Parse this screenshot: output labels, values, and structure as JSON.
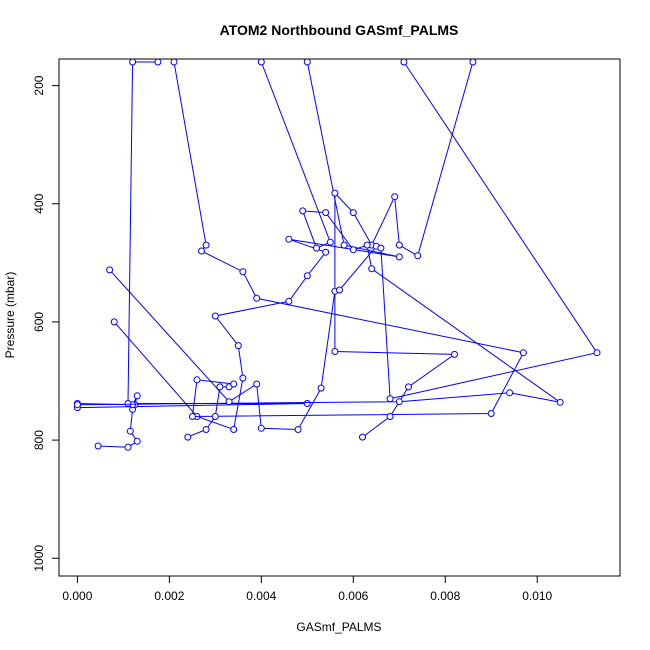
{
  "chart_data": {
    "type": "line",
    "title": "ATOM2 Northbound GASmf_PALMS",
    "xlabel": "GASmf_PALMS",
    "ylabel": "Pressure (mbar)",
    "xlim": [
      -0.0004,
      0.0118
    ],
    "ylim": [
      1030,
      155
    ],
    "y_reversed": true,
    "grid": false,
    "legend": "none",
    "x_ticks": [
      0.0,
      0.002,
      0.004,
      0.006,
      0.008,
      0.01
    ],
    "x_tick_labels": [
      "0.000",
      "0.002",
      "0.004",
      "0.006",
      "0.008",
      "0.010"
    ],
    "y_ticks": [
      200,
      400,
      600,
      800,
      1000
    ],
    "y_tick_labels": [
      "200",
      "400",
      "600",
      "800",
      "1000"
    ],
    "line_color": "#0000ff",
    "marker": "open-circle",
    "series": [
      {
        "x": [
          0.00045,
          0.0011,
          0.0013,
          0.00115,
          0.0012,
          0.00125,
          0.0013,
          0.0012,
          0.0,
          0.0,
          0.005,
          0.0011,
          0.0012,
          0.00175
        ],
        "y": [
          810,
          812,
          802,
          785,
          748,
          740,
          725,
          740,
          738,
          745,
          738,
          738,
          160,
          160
        ]
      },
      {
        "x": [
          0.0008,
          0.0026,
          0.0034,
          0.0036,
          0.0035,
          0.003,
          0.0046,
          0.005,
          0.0054,
          0.0046,
          0.007,
          0.0058,
          0.005
        ],
        "y": [
          600,
          760,
          782,
          695,
          640,
          590,
          565,
          522,
          482,
          460,
          490,
          470,
          160
        ]
      },
      {
        "x": [
          0.0024,
          0.0028,
          0.003,
          0.0031,
          0.0033,
          0.0034,
          0.0026,
          0.0025,
          0.009,
          0.0097,
          0.0039,
          0.0036,
          0.0027,
          0.0028,
          0.0021
        ],
        "y": [
          795,
          782,
          760,
          710,
          710,
          705,
          698,
          760,
          755,
          652,
          560,
          515,
          480,
          470,
          160
        ]
      },
      {
        "x": [
          0.0062,
          0.0068,
          0.0072,
          0.0082,
          0.0056,
          0.0056,
          0.006,
          0.0064,
          0.0069,
          0.007,
          0.0074,
          0.0086
        ],
        "y": [
          795,
          760,
          710,
          655,
          650,
          382,
          415,
          470,
          388,
          470,
          488,
          160
        ]
      },
      {
        "x": [
          0.0,
          0.007,
          0.0094,
          0.0105,
          0.0064,
          0.0063,
          0.006,
          0.0054,
          0.0049,
          0.0052,
          0.0055,
          0.004
        ],
        "y": [
          740,
          735,
          720,
          736,
          510,
          470,
          478,
          415,
          412,
          475,
          465,
          160
        ]
      },
      {
        "x": [
          0.0007,
          0.0033,
          0.0039,
          0.004,
          0.0048,
          0.0053,
          0.0056,
          0.0057,
          0.0065,
          0.0066,
          0.0068,
          0.0113,
          0.0071
        ],
        "y": [
          512,
          735,
          705,
          780,
          782,
          712,
          548,
          546,
          472,
          475,
          730,
          652,
          160
        ]
      }
    ]
  }
}
